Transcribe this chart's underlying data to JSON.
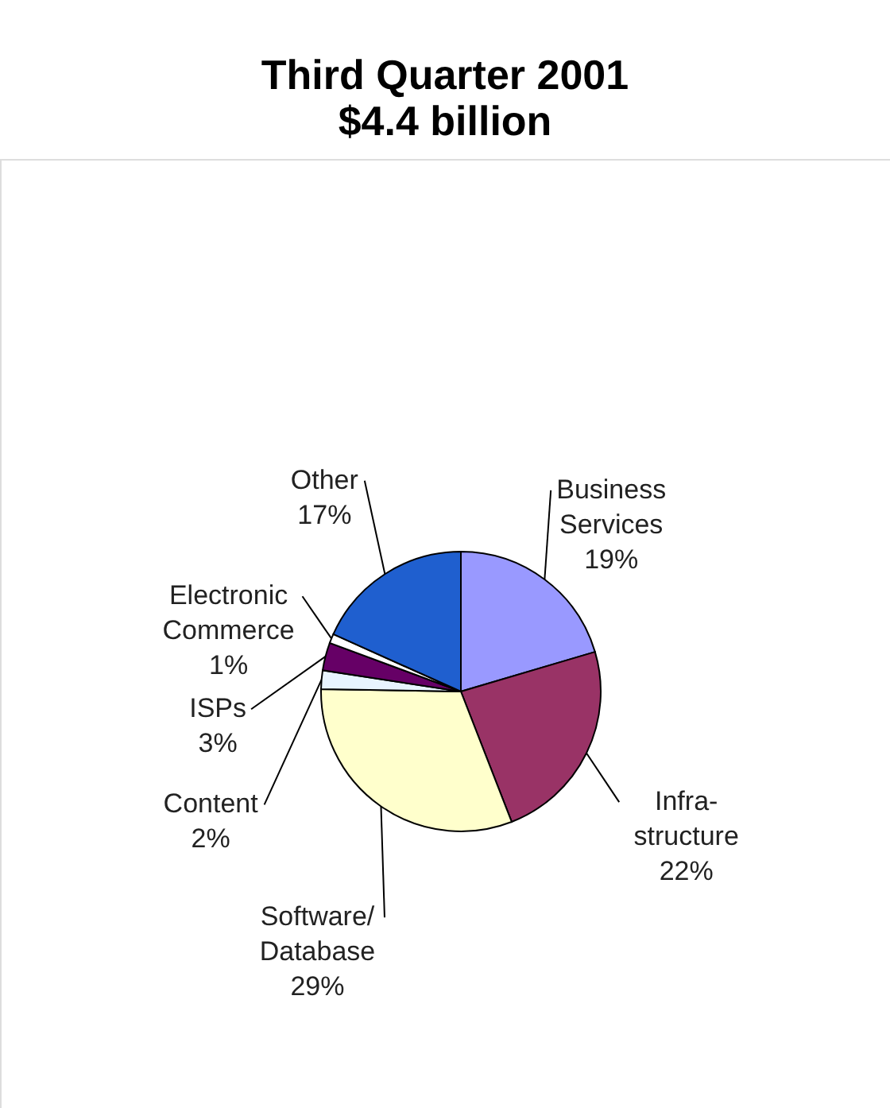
{
  "chart_data": {
    "type": "pie",
    "title": "Third Quarter 2001",
    "subtitle": "$4.4 billion",
    "categories": [
      "Business Services",
      "Infra-structure",
      "Software/Database",
      "Content",
      "ISPs",
      "Electronic Commerce",
      "Other"
    ],
    "values": [
      19,
      22,
      29,
      2,
      3,
      1,
      17
    ],
    "value_labels": [
      "19%",
      "22%",
      "29%",
      "2%",
      "3%",
      "1%",
      "17%"
    ],
    "colors": [
      "#9999ff",
      "#993366",
      "#ffffcc",
      "#e8f4ff",
      "#660066",
      "#ffffff",
      "#1f5fcf"
    ]
  }
}
